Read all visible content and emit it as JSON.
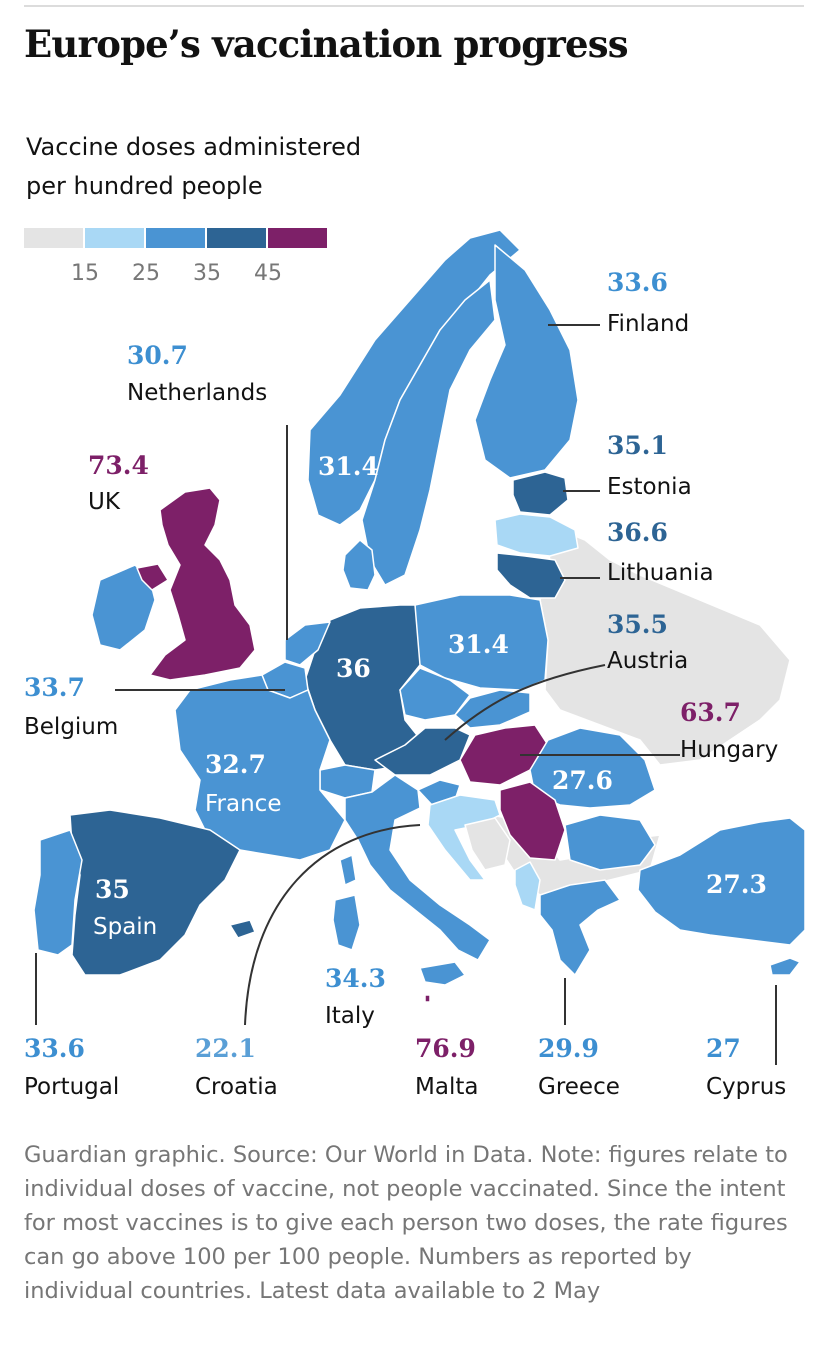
{
  "header": {
    "title": "Europe’s vaccination progress",
    "subtitle_line1": "Vaccine doses administered",
    "subtitle_line2": "per hundred people"
  },
  "legend": {
    "colors": [
      "#e4e4e4",
      "#a9d8f5",
      "#4a94d3",
      "#2d6494",
      "#7d2068"
    ],
    "ticks": [
      "15",
      "25",
      "35",
      "45"
    ]
  },
  "colors": {
    "no_data": "#e4e4e4",
    "bin_15_25": "#a9d8f5",
    "bin_25_35": "#4a94d3",
    "bin_35_45": "#2d6494",
    "bin_45_plus": "#7d2068",
    "border": "#ffffff",
    "leader_line": "#333333"
  },
  "countries": {
    "finland": {
      "name": "Finland",
      "value": "33.6"
    },
    "netherlands": {
      "name": "Netherlands",
      "value": "30.7"
    },
    "estonia": {
      "name": "Estonia",
      "value": "35.1"
    },
    "uk": {
      "name": "UK",
      "value": "73.4"
    },
    "lithuania": {
      "name": "Lithuania",
      "value": "36.6"
    },
    "austria": {
      "name": "Austria",
      "value": "35.5"
    },
    "belgium": {
      "name": "Belgium",
      "value": "33.7"
    },
    "hungary": {
      "name": "Hungary",
      "value": "63.7"
    },
    "france": {
      "name": "France",
      "value": "32.7"
    },
    "spain": {
      "name": "Spain",
      "value": "35"
    },
    "italy": {
      "name": "Italy",
      "value": "34.3"
    },
    "portugal": {
      "name": "Portugal",
      "value": "33.6"
    },
    "croatia": {
      "name": "Croatia",
      "value": "22.1"
    },
    "malta": {
      "name": "Malta",
      "value": "76.9"
    },
    "greece": {
      "name": "Greece",
      "value": "29.9"
    },
    "cyprus": {
      "name": "Cyprus",
      "value": "27"
    }
  },
  "map_values": {
    "sweden": "31.4",
    "poland": "31.4",
    "germany": "36",
    "romania": "27.6",
    "turkey": "27.3"
  },
  "footnote": "Guardian graphic. Source: Our World in Data. Note: figures relate to individual doses of vaccine, not people vaccinated. Since the intent for most vaccines is to give each person two doses, the rate figures can go above 100 per 100 people. Numbers as reported by individual countries. Latest data available to 2 May"
}
